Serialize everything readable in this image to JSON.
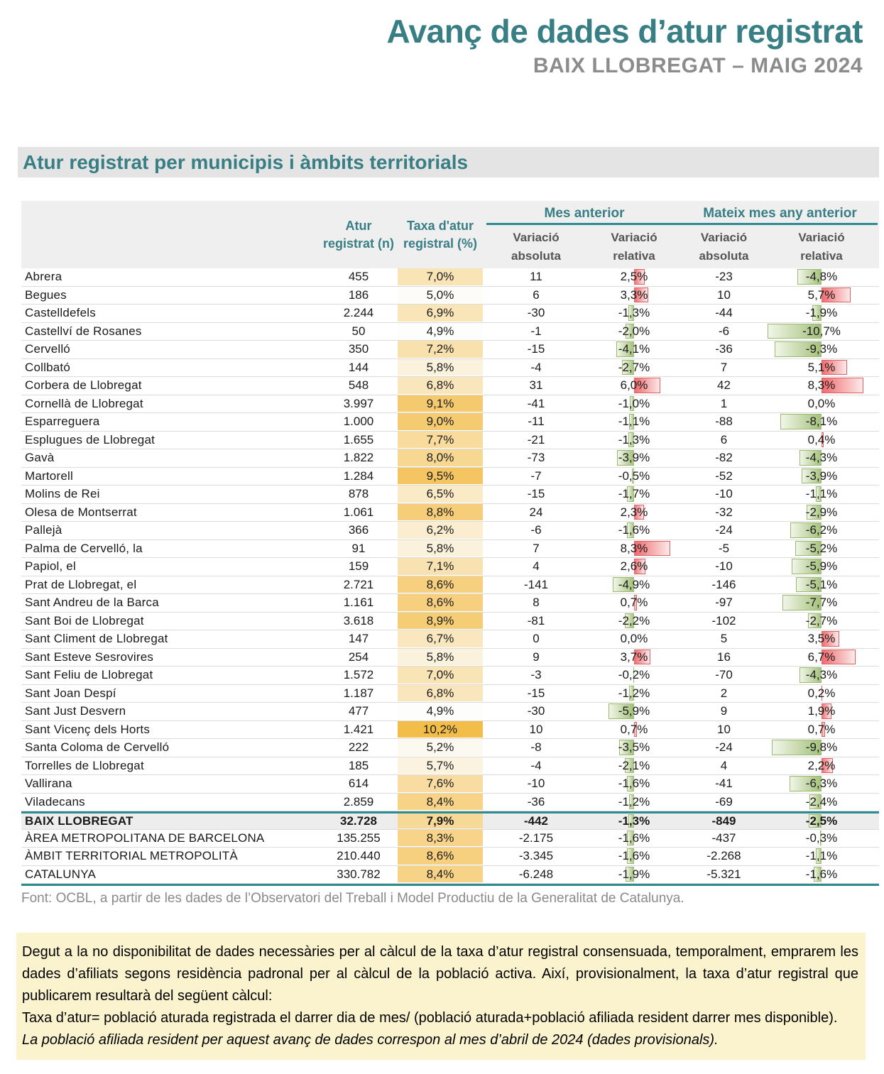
{
  "header": {
    "title": "Avanç de dades d’atur registrat",
    "subtitle": "BAIX LLOBREGAT – MAIG 2024"
  },
  "section_title": "Atur registrat per municipis i àmbits territorials",
  "table": {
    "col_atur": "Atur registrat (n)",
    "col_taxa": "Taxa d'atur registral (%)",
    "groups": [
      {
        "label": "Mes anterior",
        "sub": [
          "Variació absoluta",
          "Variació relativa"
        ]
      },
      {
        "label": "Mateix mes any anterior",
        "sub": [
          "Variació absoluta",
          "Variació relativa"
        ]
      }
    ],
    "rows": [
      {
        "name": "Abrera",
        "n": "455",
        "taxa": "7,0%",
        "mes_abs": "11",
        "mes_rel": "2,5%",
        "any_abs": "-23",
        "any_rel": "-4,8%"
      },
      {
        "name": "Begues",
        "n": "186",
        "taxa": "5,0%",
        "mes_abs": "6",
        "mes_rel": "3,3%",
        "any_abs": "10",
        "any_rel": "5,7%"
      },
      {
        "name": "Castelldefels",
        "n": "2.244",
        "taxa": "6,9%",
        "mes_abs": "-30",
        "mes_rel": "-1,3%",
        "any_abs": "-44",
        "any_rel": "-1,9%"
      },
      {
        "name": "Castellví de Rosanes",
        "n": "50",
        "taxa": "4,9%",
        "mes_abs": "-1",
        "mes_rel": "-2,0%",
        "any_abs": "-6",
        "any_rel": "-10,7%"
      },
      {
        "name": "Cervelló",
        "n": "350",
        "taxa": "7,2%",
        "mes_abs": "-15",
        "mes_rel": "-4,1%",
        "any_abs": "-36",
        "any_rel": "-9,3%"
      },
      {
        "name": "Collbató",
        "n": "144",
        "taxa": "5,8%",
        "mes_abs": "-4",
        "mes_rel": "-2,7%",
        "any_abs": "7",
        "any_rel": "5,1%"
      },
      {
        "name": "Corbera de Llobregat",
        "n": "548",
        "taxa": "6,8%",
        "mes_abs": "31",
        "mes_rel": "6,0%",
        "any_abs": "42",
        "any_rel": "8,3%"
      },
      {
        "name": "Cornellà de Llobregat",
        "n": "3.997",
        "taxa": "9,1%",
        "mes_abs": "-41",
        "mes_rel": "-1,0%",
        "any_abs": "1",
        "any_rel": "0,0%"
      },
      {
        "name": "Esparreguera",
        "n": "1.000",
        "taxa": "9,0%",
        "mes_abs": "-11",
        "mes_rel": "-1,1%",
        "any_abs": "-88",
        "any_rel": "-8,1%"
      },
      {
        "name": "Esplugues de Llobregat",
        "n": "1.655",
        "taxa": "7,7%",
        "mes_abs": "-21",
        "mes_rel": "-1,3%",
        "any_abs": "6",
        "any_rel": "0,4%"
      },
      {
        "name": "Gavà",
        "n": "1.822",
        "taxa": "8,0%",
        "mes_abs": "-73",
        "mes_rel": "-3,9%",
        "any_abs": "-82",
        "any_rel": "-4,3%"
      },
      {
        "name": "Martorell",
        "n": "1.284",
        "taxa": "9,5%",
        "mes_abs": "-7",
        "mes_rel": "-0,5%",
        "any_abs": "-52",
        "any_rel": "-3,9%"
      },
      {
        "name": "Molins de Rei",
        "n": "878",
        "taxa": "6,5%",
        "mes_abs": "-15",
        "mes_rel": "-1,7%",
        "any_abs": "-10",
        "any_rel": "-1,1%"
      },
      {
        "name": "Olesa de Montserrat",
        "n": "1.061",
        "taxa": "8,8%",
        "mes_abs": "24",
        "mes_rel": "2,3%",
        "any_abs": "-32",
        "any_rel": "-2,9%"
      },
      {
        "name": "Pallejà",
        "n": "366",
        "taxa": "6,2%",
        "mes_abs": "-6",
        "mes_rel": "-1,6%",
        "any_abs": "-24",
        "any_rel": "-6,2%"
      },
      {
        "name": "Palma de Cervelló, la",
        "n": "91",
        "taxa": "5,8%",
        "mes_abs": "7",
        "mes_rel": "8,3%",
        "any_abs": "-5",
        "any_rel": "-5,2%"
      },
      {
        "name": "Papiol, el",
        "n": "159",
        "taxa": "7,1%",
        "mes_abs": "4",
        "mes_rel": "2,6%",
        "any_abs": "-10",
        "any_rel": "-5,9%"
      },
      {
        "name": "Prat de Llobregat, el",
        "n": "2.721",
        "taxa": "8,6%",
        "mes_abs": "-141",
        "mes_rel": "-4,9%",
        "any_abs": "-146",
        "any_rel": "-5,1%"
      },
      {
        "name": "Sant Andreu de la Barca",
        "n": "1.161",
        "taxa": "8,6%",
        "mes_abs": "8",
        "mes_rel": "0,7%",
        "any_abs": "-97",
        "any_rel": "-7,7%"
      },
      {
        "name": "Sant Boi de Llobregat",
        "n": "3.618",
        "taxa": "8,9%",
        "mes_abs": "-81",
        "mes_rel": "-2,2%",
        "any_abs": "-102",
        "any_rel": "-2,7%"
      },
      {
        "name": "Sant Climent de Llobregat",
        "n": "147",
        "taxa": "6,7%",
        "mes_abs": "0",
        "mes_rel": "0,0%",
        "any_abs": "5",
        "any_rel": "3,5%"
      },
      {
        "name": "Sant Esteve Sesrovires",
        "n": "254",
        "taxa": "5,8%",
        "mes_abs": "9",
        "mes_rel": "3,7%",
        "any_abs": "16",
        "any_rel": "6,7%"
      },
      {
        "name": "Sant Feliu de Llobregat",
        "n": "1.572",
        "taxa": "7,0%",
        "mes_abs": "-3",
        "mes_rel": "-0,2%",
        "any_abs": "-70",
        "any_rel": "-4,3%"
      },
      {
        "name": "Sant Joan Despí",
        "n": "1.187",
        "taxa": "6,8%",
        "mes_abs": "-15",
        "mes_rel": "-1,2%",
        "any_abs": "2",
        "any_rel": "0,2%"
      },
      {
        "name": "Sant Just Desvern",
        "n": "477",
        "taxa": "4,9%",
        "mes_abs": "-30",
        "mes_rel": "-5,9%",
        "any_abs": "9",
        "any_rel": "1,9%"
      },
      {
        "name": "Sant Vicenç dels Horts",
        "n": "1.421",
        "taxa": "10,2%",
        "mes_abs": "10",
        "mes_rel": "0,7%",
        "any_abs": "10",
        "any_rel": "0,7%"
      },
      {
        "name": "Santa Coloma de Cervelló",
        "n": "222",
        "taxa": "5,2%",
        "mes_abs": "-8",
        "mes_rel": "-3,5%",
        "any_abs": "-24",
        "any_rel": "-9,8%"
      },
      {
        "name": "Torrelles de Llobregat",
        "n": "185",
        "taxa": "5,7%",
        "mes_abs": "-4",
        "mes_rel": "-2,1%",
        "any_abs": "4",
        "any_rel": "2,2%"
      },
      {
        "name": "Vallirana",
        "n": "614",
        "taxa": "7,6%",
        "mes_abs": "-10",
        "mes_rel": "-1,6%",
        "any_abs": "-41",
        "any_rel": "-6,3%"
      },
      {
        "name": "Viladecans",
        "n": "2.859",
        "taxa": "8,4%",
        "mes_abs": "-36",
        "mes_rel": "-1,2%",
        "any_abs": "-69",
        "any_rel": "-2,4%"
      },
      {
        "name": "BAIX LLOBREGAT",
        "n": "32.728",
        "taxa": "7,9%",
        "mes_abs": "-442",
        "mes_rel": "-1,3%",
        "any_abs": "-849",
        "any_rel": "-2,5%",
        "style": "total"
      },
      {
        "name": "ÀREA METROPOLITANA DE BARCELONA",
        "n": "135.255",
        "taxa": "8,3%",
        "mes_abs": "-2.175",
        "mes_rel": "-1,6%",
        "any_abs": "-437",
        "any_rel": "-0,3%",
        "style": "ambit"
      },
      {
        "name": "ÀMBIT TERRITORIAL METROPOLITÀ",
        "n": "210.440",
        "taxa": "8,6%",
        "mes_abs": "-3.345",
        "mes_rel": "-1,6%",
        "any_abs": "-2.268",
        "any_rel": "-1,1%",
        "style": "ambit"
      },
      {
        "name": "CATALUNYA",
        "n": "330.782",
        "taxa": "8,4%",
        "mes_abs": "-6.248",
        "mes_rel": "-1,9%",
        "any_abs": "-5.321",
        "any_rel": "-1,6%",
        "style": "ambit"
      }
    ]
  },
  "footer_note": "Font: OCBL, a partir de les dades de l’Observatori del Treball i Model Productiu de la Generalitat de Catalunya.",
  "note_box": {
    "paragraphs": [
      {
        "text": "Degut a la no disponibilitat de dades necessàries per al càlcul de la taxa d’atur registral consensuada, temporalment, emprarem les dades d’afiliats segons residència padronal per al càlcul de la població activa. Així, provisionalment, la taxa d’atur registral que publicarem resultarà del següent càlcul:",
        "style": "normal"
      },
      {
        "text": "Taxa d’atur= població aturada registrada el darrer dia de mes/ (població aturada+població afiliada resident darrer mes disponible).",
        "style": "normal"
      },
      {
        "text": "La població afiliada resident per aquest avanç de dades correspon al mes d’abril  de 2024 (dades provisionals).",
        "style": "italic"
      }
    ]
  },
  "colors": {
    "teal": "#377E85",
    "teal_line": "#2E8C90",
    "subtitle_gray": "#8C8C8C",
    "band_bg": "#E4E4E4",
    "header_bg": "#EFEFEF",
    "subheader_text": "#545454",
    "row_line": "#DCDCDC",
    "summary_bg": "#EDEDED",
    "taxa_scale_min": "#FDFDFB",
    "taxa_scale_max": "#F3BD4A",
    "bar_red": "#F0696C",
    "bar_red_fade": "#FCEAEA",
    "bar_green": "#A3C07A",
    "bar_green_fade": "#F1F6E8",
    "note_bg": "#FBF2CE",
    "source_gray": "#8A8A8A"
  }
}
